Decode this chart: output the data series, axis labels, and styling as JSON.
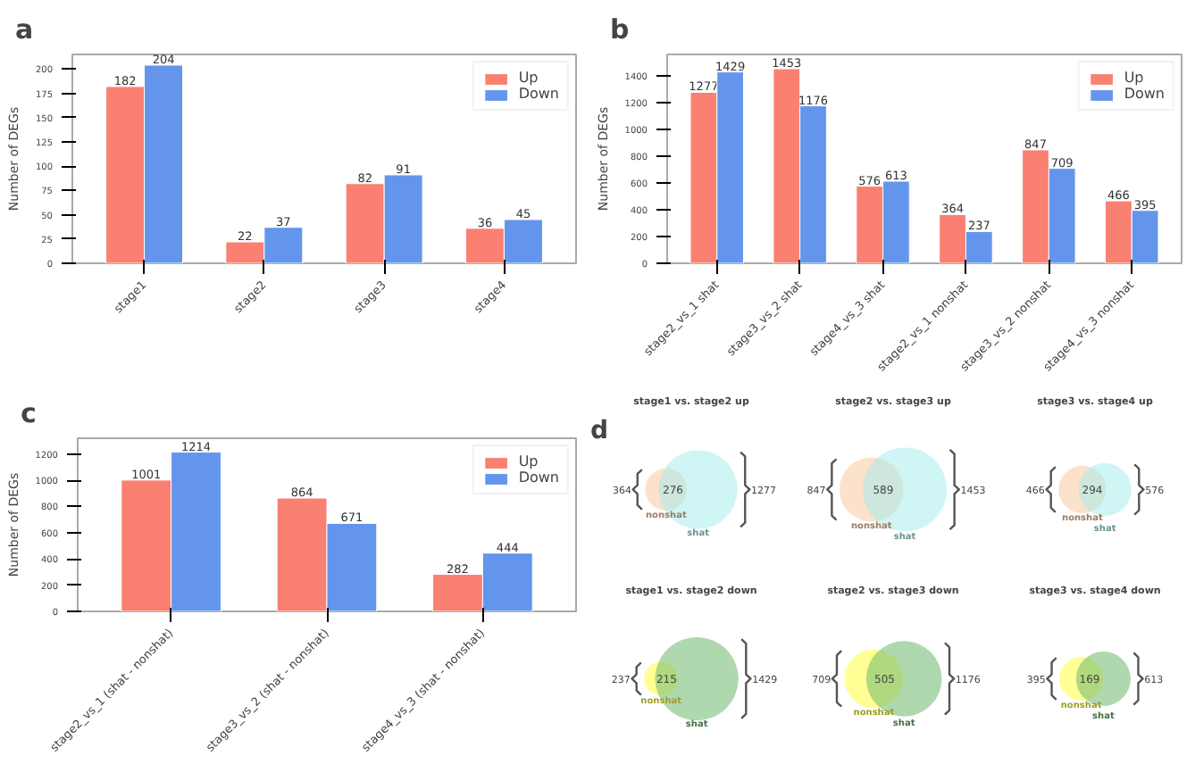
{
  "chart_data": [
    {
      "type": "bar",
      "title": "a",
      "ylabel": "Number of DEGs",
      "categories": [
        "stage1",
        "stage2",
        "stage3",
        "stage4"
      ],
      "series": [
        {
          "name": "Up",
          "color": "#fa8072",
          "values": [
            182,
            22,
            82,
            36
          ]
        },
        {
          "name": "Down",
          "color": "#6495ed",
          "values": [
            204,
            37,
            91,
            45
          ]
        }
      ],
      "ylim": [
        0,
        215
      ],
      "yticks": [
        0,
        25,
        50,
        75,
        100,
        125,
        150,
        175,
        200
      ],
      "data_labels": true,
      "legend": "top right"
    },
    {
      "type": "bar",
      "title": "b",
      "ylabel": "Number of DEGs",
      "categories": [
        "stage2_vs_1 shat",
        "stage3_vs_2 shat",
        "stage4_vs_3 shat",
        "stage2_vs_1 nonshat",
        "stage3_vs_2 nonshat",
        "stage4_vs_3 nonshat"
      ],
      "series": [
        {
          "name": "Up",
          "color": "#fa8072",
          "values": [
            1277,
            1453,
            576,
            364,
            847,
            466
          ]
        },
        {
          "name": "Down",
          "color": "#6495ed",
          "values": [
            1429,
            1176,
            613,
            237,
            709,
            395
          ]
        }
      ],
      "ylim": [
        0,
        1560
      ],
      "yticks": [
        0,
        200,
        400,
        600,
        800,
        1000,
        1200,
        1400
      ],
      "data_labels": true,
      "legend": "top right"
    },
    {
      "type": "bar",
      "title": "c",
      "ylabel": "Number of DEGs",
      "categories": [
        "stage2_vs_1 (shat - nonshat)",
        "stage3_vs_2 (shat - nonshat)",
        "stage4_vs_3 (shat - nonshat)"
      ],
      "series": [
        {
          "name": "Up",
          "color": "#fa8072",
          "values": [
            1001,
            864,
            282
          ]
        },
        {
          "name": "Down",
          "color": "#6495ed",
          "values": [
            1214,
            671,
            444
          ]
        }
      ],
      "ylim": [
        0,
        1320
      ],
      "yticks": [
        0,
        200,
        400,
        600,
        800,
        1000,
        1200
      ],
      "data_labels": true,
      "legend": "top right"
    },
    {
      "type": "other",
      "title": "stage1 vs. stage2 up",
      "annotations": [
        "d",
        "276"
      ],
      "categories": [
        "nonshat",
        "shat"
      ],
      "values": [
        364,
        1277
      ],
      "colors": [
        "#f9c8a0",
        "#a8ecec"
      ],
      "data_labels": true
    },
    {
      "type": "other",
      "title": "stage2 vs. stage3 up",
      "annotations": [
        "589"
      ],
      "categories": [
        "nonshat",
        "shat"
      ],
      "values": [
        847,
        1453
      ],
      "colors": [
        "#f9c8a0",
        "#a8ecec"
      ],
      "data_labels": true
    },
    {
      "type": "other",
      "title": "stage3 vs. stage4 up",
      "annotations": [
        "294"
      ],
      "categories": [
        "nonshat",
        "shat"
      ],
      "values": [
        466,
        576
      ],
      "colors": [
        "#f9c8a0",
        "#a8ecec"
      ],
      "data_labels": true
    },
    {
      "type": "other",
      "title": "stage1 vs. stage2 down",
      "annotations": [
        "215"
      ],
      "categories": [
        "nonshat",
        "shat"
      ],
      "values": [
        237,
        1429
      ],
      "colors": [
        "#ffff40",
        "#6db86d"
      ],
      "data_labels": true
    },
    {
      "type": "other",
      "title": "stage2 vs. stage3 down",
      "annotations": [
        "505"
      ],
      "categories": [
        "nonshat",
        "shat"
      ],
      "values": [
        709,
        1176
      ],
      "colors": [
        "#ffff40",
        "#6db86d"
      ],
      "data_labels": true
    },
    {
      "type": "other",
      "title": "stage3 vs. stage4 down",
      "annotations": [
        "169"
      ],
      "categories": [
        "nonshat",
        "shat"
      ],
      "values": [
        395,
        613
      ],
      "colors": [
        "#ffff40",
        "#6db86d"
      ],
      "data_labels": true
    }
  ]
}
